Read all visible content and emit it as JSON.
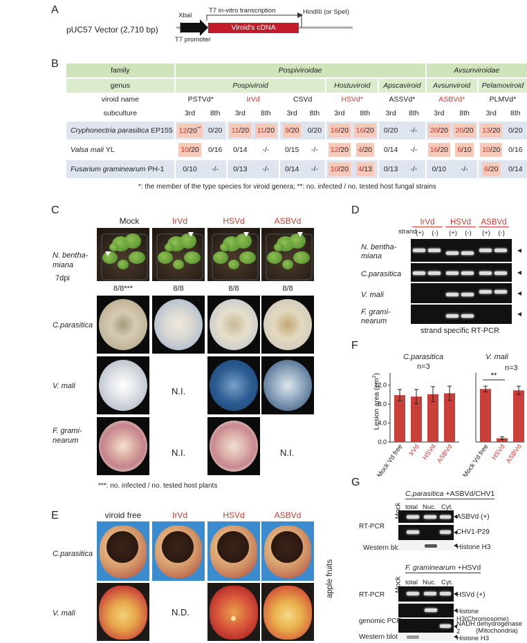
{
  "panelA": {
    "label": "A",
    "vector": "pUC57 Vector (2,710 bp)",
    "xbal": "XbaI",
    "t7_transcription": "T7 in-vitro transcription",
    "hind": "HindIII (or SpeI)",
    "viroid_cdna": "Viroid's cDNA",
    "t7_promoter": "T7 promoter"
  },
  "panelB": {
    "label": "B",
    "rows": {
      "family": "family",
      "genus": "genus",
      "viroid_name": "viroid name",
      "subculture": "subculture"
    },
    "families": [
      "Pospiviroidae",
      "Avsunviroidae"
    ],
    "genera": [
      "Pospiviroid",
      "Hostuviroid",
      "Apscaviroid",
      "Avsunviroid",
      "Pelamoviroid"
    ],
    "viroids": [
      "PSTVd*",
      "IrVd",
      "CSVd",
      "HSVd*",
      "ASSVd*",
      "ASBVd*",
      "PLMVd*"
    ],
    "subcultures": [
      "3rd",
      "8th",
      "3rd",
      "8th",
      "3rd",
      "8th",
      "3rd",
      "8th",
      "3rd",
      "8th",
      "3rd",
      "8th",
      "3rd",
      "8th"
    ],
    "hosts": [
      {
        "name_it": "Cryphonectria parasitica",
        "name_rest": " EP155",
        "sup": "**",
        "cells": [
          "12/20",
          "0/20",
          "11/20",
          "11/20",
          "9/20",
          "0/20",
          "16/20",
          "16/20",
          "0/20",
          "-/-",
          "20/20",
          "20/20",
          "13/20",
          "0/20"
        ]
      },
      {
        "name_it": "Valsa mali",
        "name_rest": " YL",
        "sup": "",
        "cells": [
          "10/20",
          "0/16",
          "0/14",
          "-/-",
          "0/15",
          "-/-",
          "12/20",
          "4/20",
          "0/14",
          "-/-",
          "16/20",
          "6/10",
          "10/20",
          "0/16"
        ]
      },
      {
        "name_it": "Fusarium graminearum",
        "name_rest": " PH-1",
        "sup": "",
        "cells": [
          "0/10",
          "-/-",
          "0/13",
          "-/-",
          "0/14",
          "-/-",
          "10/20",
          "4/13",
          "0/13",
          "-/-",
          "0/10",
          "-/-",
          "6/20",
          "0/14"
        ]
      }
    ],
    "footnote": "*: the member of the type species for viroid genera; **: no. infected / no. tested host fungal strains"
  },
  "panelC": {
    "label": "C",
    "columns": [
      "Mock",
      "IrVd",
      "HSVd",
      "ASBVd"
    ],
    "row_plant": "N. bentha-miana",
    "dpi": "7dpi",
    "plant_counts": [
      "8/8***",
      "8/8",
      "8/8",
      "8/8"
    ],
    "row_cp": "C.parasitica",
    "row_vm": "V. mali",
    "row_fg": "F. grami-nearum",
    "ni": "N.I.",
    "footnote": "***: no. infected / no. tested host plants"
  },
  "panelD": {
    "label": "D",
    "strand": "strand",
    "groups": [
      "IrVd",
      "HSVd",
      "ASBVd"
    ],
    "strands": [
      "(+)",
      "(-)",
      "(+)",
      "(-)",
      "(+)",
      "(-)"
    ],
    "rows": [
      "N. bentha-miana",
      "C.parasitica",
      "V. mali",
      "F. grami-nearum"
    ],
    "caption": "strand specific RT-PCR"
  },
  "panelE": {
    "label": "E",
    "columns": [
      "viroid free",
      "IrVd",
      "HSVd",
      "ASBVd"
    ],
    "row_cp": "C.parasitica",
    "row_vm": "V. mali",
    "nd": "N.D.",
    "side": "apple fruits"
  },
  "panelF": {
    "label": "F",
    "ylabel": "Lesion area (cm",
    "ylabel_sup": "2",
    "ylabel_end": ")",
    "title_cp": "C.parasitica",
    "title_vm": "V. mali",
    "n_cp": "n=3",
    "n_vm": "n=3",
    "sig": "**",
    "yticks": [
      "0.0",
      "4.0",
      "8.0",
      "12.0"
    ]
  },
  "panelG": {
    "label": "G",
    "mock": "Mock",
    "top_title_it": "C.parasitica",
    "top_title_rest": " +ASBVd/CHV1",
    "cols": [
      "total",
      "Nuc.",
      "Cyt."
    ],
    "rtpcr": "RT-PCR",
    "western": "Western blot",
    "asbvd": "ASBVd (+)",
    "chv": "CHV1-P29",
    "histone": "Histone H3",
    "bottom_title_it": "F. graminearum",
    "bottom_title_rest": " +HSVd",
    "hsvd": "HSVd (+)",
    "genomic": "genomic  PCR",
    "histone_chr": "Histone H3(Chromosome)",
    "nadh": "NADH dehydrogenase 2",
    "mito": "(Mitochondria)",
    "histone2": "Histone H3"
  },
  "chart_data": [
    {
      "type": "bar",
      "title": "C.parasitica",
      "categories": [
        "Mock Vd free",
        "IrVd",
        "HSVd",
        "ASBVd"
      ],
      "values": [
        9.9,
        9.6,
        10.1,
        10.3
      ],
      "errors": [
        1.2,
        1.5,
        1.6,
        1.5
      ],
      "ylabel": "Lesion area (cm2)",
      "ylim": [
        0,
        14
      ],
      "colors": [
        "#c9403a"
      ]
    },
    {
      "type": "bar",
      "title": "V. mali",
      "categories": [
        "Mock Vd free",
        "HSVd",
        "ASBVd"
      ],
      "values": [
        11.2,
        0.8,
        10.9
      ],
      "errors": [
        0.6,
        0.3,
        0.9
      ],
      "ylabel": "Lesion area (cm2)",
      "ylim": [
        0,
        14
      ],
      "colors": [
        "#c9403a"
      ]
    }
  ]
}
